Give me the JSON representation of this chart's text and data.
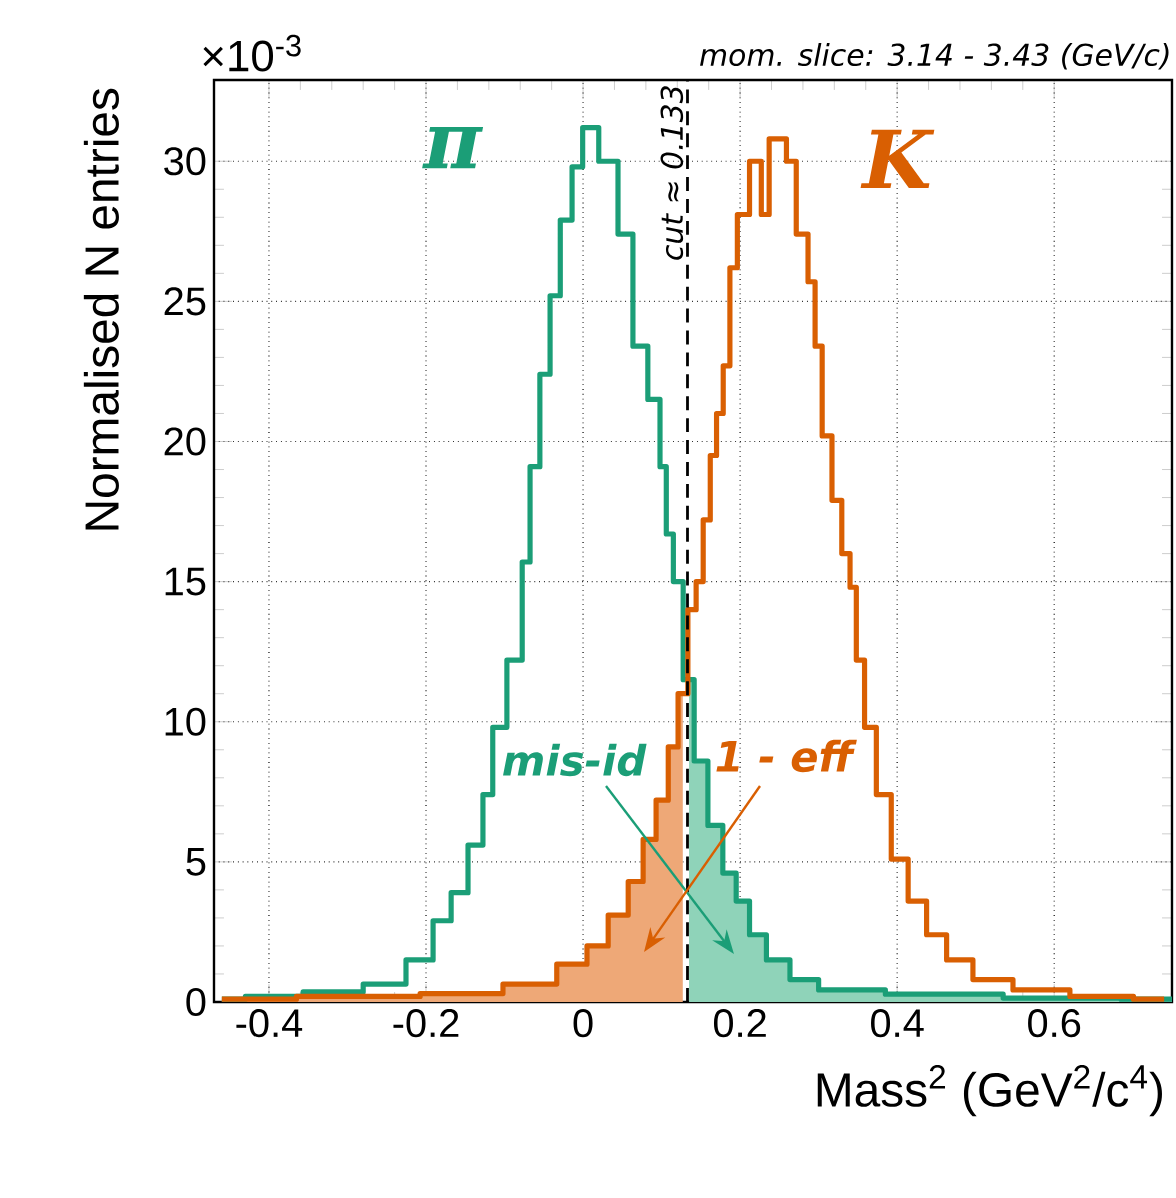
{
  "chart_data": {
    "type": "step",
    "title": "mom. slice: 3.14 - 3.43 (GeV/c)",
    "xlabel": "Mass$^{2}$ (GeV$^{2}$/c$^{4}$)",
    "ylabel": "Normalised N entries",
    "xlim": [
      -0.47,
      0.75
    ],
    "ylim": [
      0,
      32.9
    ],
    "xticks": [
      -0.4,
      -0.2,
      0,
      0.2,
      0.4,
      0.6
    ],
    "yticks": [
      0,
      5,
      10,
      15,
      20,
      25,
      30
    ],
    "grid": true,
    "series": [
      {
        "type": "area",
        "color": "#eea877",
        "x": [
          -0.46,
          -0.27,
          -0.145,
          -0.059,
          -0.008,
          0.018,
          0.046,
          0.069,
          0.084,
          0.102,
          0.115,
          0.127
        ],
        "values": [
          0.1,
          0.2,
          0.3,
          0.64,
          1.35,
          2.0,
          3.1,
          4.3,
          5.8,
          7.2,
          9.1,
          11.0
        ]
      },
      {
        "type": "area",
        "color": "#8fd3b9",
        "x": [
          0.135,
          0.148,
          0.17,
          0.186,
          0.204,
          0.22,
          0.247,
          0.28,
          0.32,
          0.45,
          0.62,
          0.75
        ],
        "values": [
          11.5,
          8.6,
          6.3,
          4.6,
          3.6,
          2.4,
          1.5,
          0.8,
          0.43,
          0.28,
          0.14,
          0.1
        ]
      },
      {
        "name": "π",
        "color": "#1b9e77",
        "x": [
          -0.46,
          -0.4,
          -0.313,
          -0.247,
          -0.204,
          -0.178,
          -0.158,
          -0.135,
          -0.12,
          -0.11,
          -0.084,
          -0.071,
          -0.064,
          -0.046,
          -0.038,
          -0.02,
          -0.008,
          0.007,
          0.033,
          0.056,
          0.071,
          0.094,
          0.102,
          0.11,
          0.12,
          0.135,
          0.148,
          0.17,
          0.186,
          0.204,
          0.22,
          0.247,
          0.28,
          0.32,
          0.45,
          0.62,
          0.75
        ],
        "values": [
          0.1,
          0.2,
          0.36,
          0.64,
          1.5,
          2.9,
          3.9,
          5.6,
          7.4,
          9.8,
          12.2,
          15.7,
          19.1,
          22.4,
          25.2,
          27.9,
          29.8,
          31.2,
          30.0,
          27.4,
          23.4,
          21.5,
          19.1,
          16.7,
          15.0,
          11.5,
          8.6,
          6.3,
          4.6,
          3.6,
          2.4,
          1.5,
          0.8,
          0.43,
          0.28,
          0.14,
          0.1
        ]
      },
      {
        "name": "K",
        "color": "#d95f02",
        "x": [
          -0.46,
          -0.27,
          -0.145,
          -0.059,
          -0.008,
          0.018,
          0.046,
          0.069,
          0.084,
          0.102,
          0.115,
          0.127,
          0.14,
          0.148,
          0.158,
          0.166,
          0.174,
          0.183,
          0.191,
          0.202,
          0.222,
          0.232,
          0.242,
          0.255,
          0.263,
          0.28,
          0.293,
          0.298,
          0.311,
          0.323,
          0.336,
          0.344,
          0.352,
          0.365,
          0.382,
          0.403,
          0.425,
          0.45,
          0.476,
          0.517,
          0.578,
          0.662,
          0.74
        ],
        "values": [
          0.1,
          0.2,
          0.3,
          0.64,
          1.35,
          2.0,
          3.1,
          4.3,
          5.8,
          7.2,
          9.1,
          11.0,
          14.0,
          15.0,
          17.2,
          19.5,
          21.0,
          22.7,
          26.2,
          28.1,
          30.0,
          28.1,
          30.8,
          30.8,
          30.0,
          27.4,
          25.7,
          23.4,
          20.2,
          17.9,
          16.0,
          14.8,
          12.2,
          9.8,
          7.4,
          5.1,
          3.6,
          2.4,
          1.5,
          0.8,
          0.43,
          0.2,
          0.1
        ]
      }
    ],
    "ref_lines": [
      {
        "axis": "x",
        "value": 0.133,
        "label": "cut ≈ 0.133",
        "color": "#000000",
        "line_style": "dashed"
      }
    ],
    "annotations": [
      "×10$^{-3}$",
      "mis-id",
      "1 - eff"
    ],
    "marker": "none",
    "line_style": "solid"
  }
}
